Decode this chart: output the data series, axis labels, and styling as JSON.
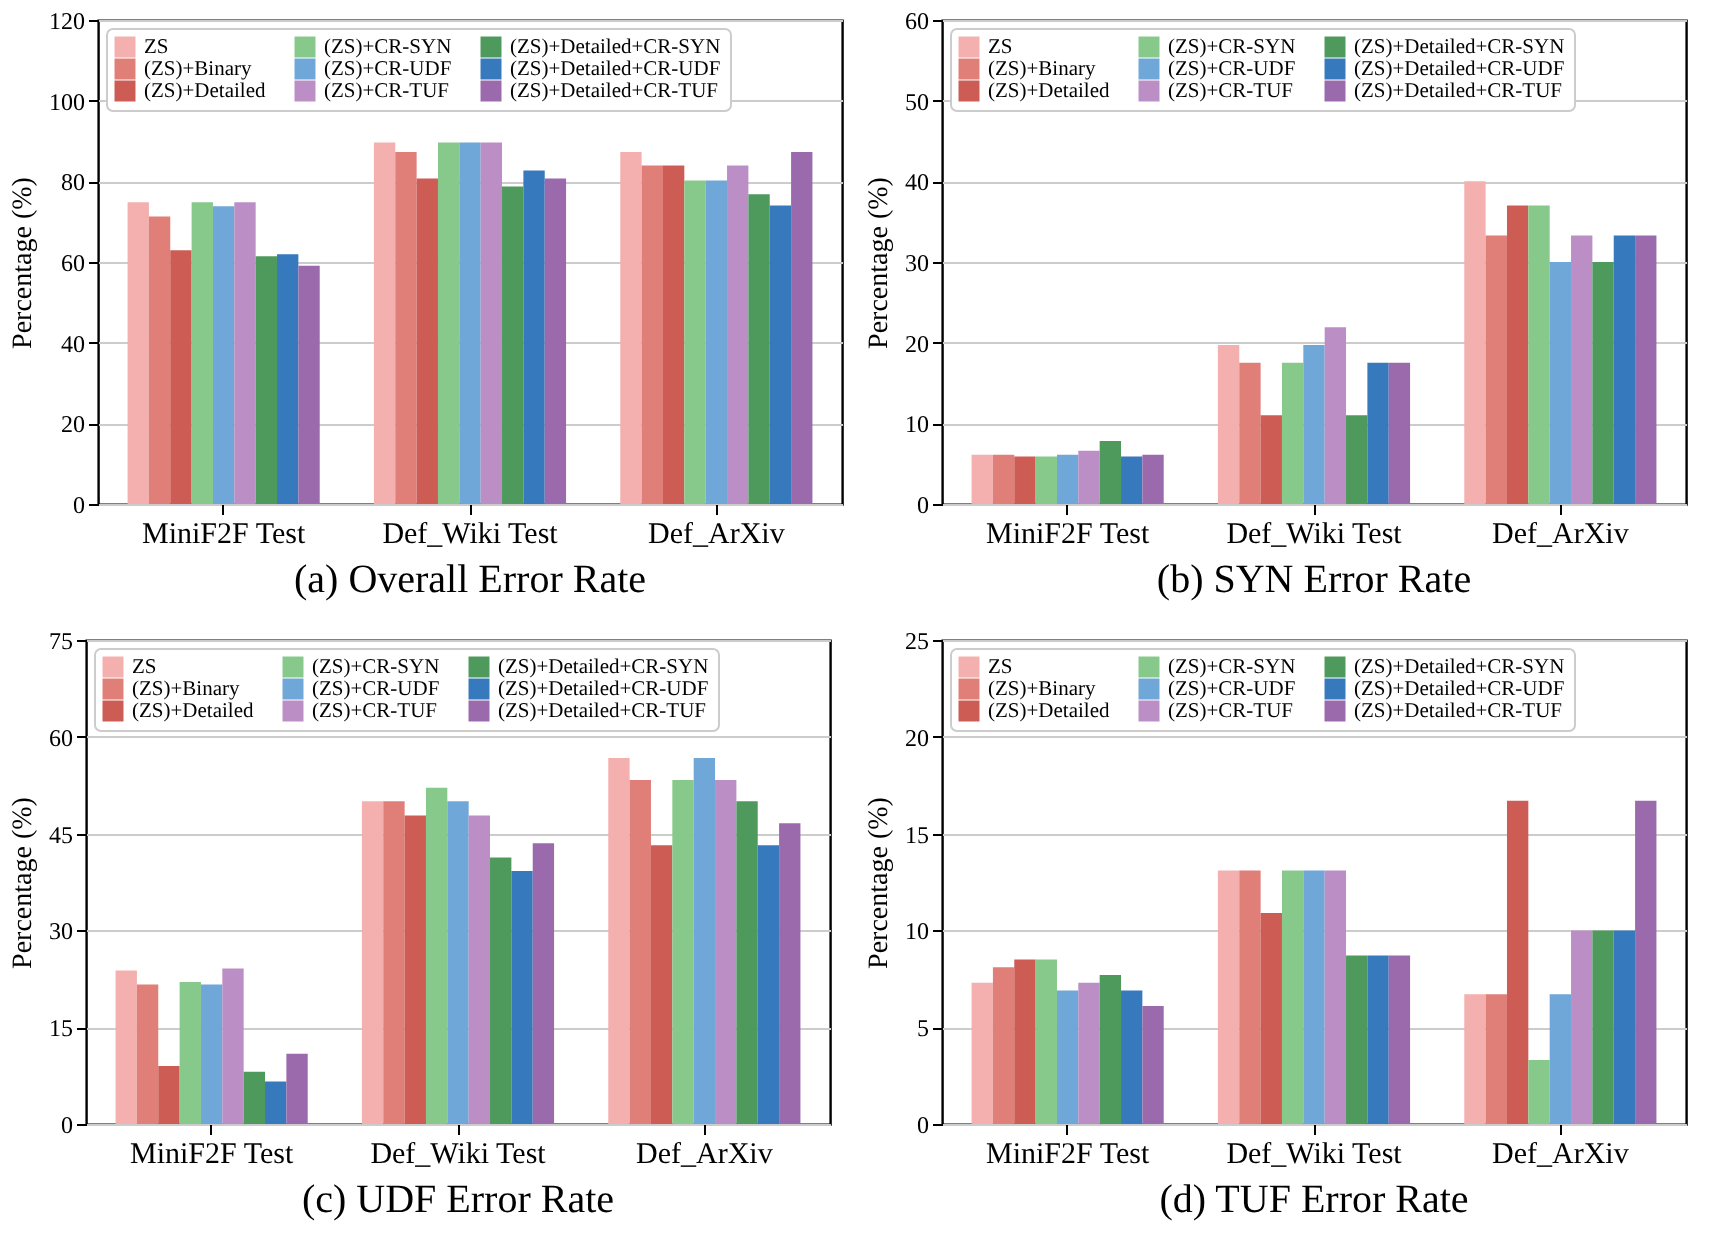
{
  "chart_data": [
    {
      "type": "bar",
      "title": "(a) Overall Error Rate",
      "ylabel": "Percentage (%)",
      "categories": [
        "MiniF2F Test",
        "Def_Wiki Test",
        "Def_ArXiv"
      ],
      "ylim": [
        0,
        120
      ],
      "yticks": [
        0,
        20,
        40,
        60,
        80,
        100,
        120
      ],
      "grid": "y",
      "legend": "top left",
      "series": [
        {
          "name": "ZS",
          "color": "#f4b0ae",
          "values": [
            74.8,
            89.6,
            87.3
          ]
        },
        {
          "name": "(ZS)+Binary",
          "color": "#e07f78",
          "values": [
            71.3,
            87.3,
            83.9
          ]
        },
        {
          "name": "(ZS)+Detailed",
          "color": "#cd5c55",
          "values": [
            62.9,
            80.7,
            83.9
          ]
        },
        {
          "name": "(ZS)+CR-SYN",
          "color": "#86c98a",
          "values": [
            74.8,
            89.6,
            80.2
          ]
        },
        {
          "name": "(ZS)+CR-UDF",
          "color": "#6fa8d8",
          "values": [
            73.8,
            89.6,
            80.2
          ]
        },
        {
          "name": "(ZS)+CR-TUF",
          "color": "#bb8fc6",
          "values": [
            74.8,
            89.6,
            83.9
          ]
        },
        {
          "name": "(ZS)+Detailed+CR-SYN",
          "color": "#4e9a5c",
          "values": [
            61.4,
            78.7,
            76.8
          ]
        },
        {
          "name": "(ZS)+Detailed+CR-UDF",
          "color": "#3779bd",
          "values": [
            61.9,
            82.7,
            74.0
          ]
        },
        {
          "name": "(ZS)+Detailed+CR-TUF",
          "color": "#9b6aad",
          "values": [
            59.1,
            80.7,
            87.3
          ]
        }
      ]
    },
    {
      "type": "bar",
      "title": "(b) SYN Error Rate",
      "ylabel": "Percentage (%)",
      "categories": [
        "MiniF2F Test",
        "Def_Wiki Test",
        "Def_ArXiv"
      ],
      "ylim": [
        0,
        60
      ],
      "yticks": [
        0,
        10,
        20,
        30,
        40,
        50,
        60
      ],
      "grid": "y",
      "legend": "top left",
      "series": [
        {
          "name": "ZS",
          "color": "#f4b0ae",
          "values": [
            6.1,
            19.7,
            40.0
          ]
        },
        {
          "name": "(ZS)+Binary",
          "color": "#e07f78",
          "values": [
            6.1,
            17.5,
            33.3
          ]
        },
        {
          "name": "(ZS)+Detailed",
          "color": "#cd5c55",
          "values": [
            5.9,
            11.0,
            37.0
          ]
        },
        {
          "name": "(ZS)+CR-SYN",
          "color": "#86c98a",
          "values": [
            5.9,
            17.5,
            37.0
          ]
        },
        {
          "name": "(ZS)+CR-UDF",
          "color": "#6fa8d8",
          "values": [
            6.1,
            19.7,
            30.0
          ]
        },
        {
          "name": "(ZS)+CR-TUF",
          "color": "#bb8fc6",
          "values": [
            6.6,
            21.9,
            33.3
          ]
        },
        {
          "name": "(ZS)+Detailed+CR-SYN",
          "color": "#4e9a5c",
          "values": [
            7.8,
            11.0,
            30.0
          ]
        },
        {
          "name": "(ZS)+Detailed+CR-UDF",
          "color": "#3779bd",
          "values": [
            5.9,
            17.5,
            33.3
          ]
        },
        {
          "name": "(ZS)+Detailed+CR-TUF",
          "color": "#9b6aad",
          "values": [
            6.1,
            17.5,
            33.3
          ]
        }
      ]
    },
    {
      "type": "bar",
      "title": "(c) UDF Error Rate",
      "ylabel": "Percentage (%)",
      "categories": [
        "MiniF2F Test",
        "Def_Wiki Test",
        "Def_ArXiv"
      ],
      "ylim": [
        0,
        75
      ],
      "yticks": [
        0,
        15,
        30,
        45,
        60,
        75
      ],
      "grid": "y",
      "legend": "top left",
      "series": [
        {
          "name": "ZS",
          "color": "#f4b0ae",
          "values": [
            23.8,
            50.0,
            56.7
          ]
        },
        {
          "name": "(ZS)+Binary",
          "color": "#e07f78",
          "values": [
            21.6,
            50.0,
            53.3
          ]
        },
        {
          "name": "(ZS)+Detailed",
          "color": "#cd5c55",
          "values": [
            9.0,
            47.8,
            43.2
          ]
        },
        {
          "name": "(ZS)+CR-SYN",
          "color": "#86c98a",
          "values": [
            22.0,
            52.1,
            53.3
          ]
        },
        {
          "name": "(ZS)+CR-UDF",
          "color": "#6fa8d8",
          "values": [
            21.6,
            50.0,
            56.7
          ]
        },
        {
          "name": "(ZS)+CR-TUF",
          "color": "#bb8fc6",
          "values": [
            24.1,
            47.8,
            53.3
          ]
        },
        {
          "name": "(ZS)+Detailed+CR-SYN",
          "color": "#4e9a5c",
          "values": [
            8.1,
            41.3,
            50.0
          ]
        },
        {
          "name": "(ZS)+Detailed+CR-UDF",
          "color": "#3779bd",
          "values": [
            6.6,
            39.2,
            43.2
          ]
        },
        {
          "name": "(ZS)+Detailed+CR-TUF",
          "color": "#9b6aad",
          "values": [
            10.9,
            43.5,
            46.6
          ]
        }
      ]
    },
    {
      "type": "bar",
      "title": "(d) TUF Error Rate",
      "ylabel": "Percentage (%)",
      "categories": [
        "MiniF2F Test",
        "Def_Wiki Test",
        "Def_ArXiv"
      ],
      "ylim": [
        0,
        25
      ],
      "yticks": [
        0,
        5,
        10,
        15,
        20,
        25
      ],
      "grid": "y",
      "legend": "top left",
      "series": [
        {
          "name": "ZS",
          "color": "#f4b0ae",
          "values": [
            7.3,
            13.1,
            6.7
          ]
        },
        {
          "name": "(ZS)+Binary",
          "color": "#e07f78",
          "values": [
            8.1,
            13.1,
            6.7
          ]
        },
        {
          "name": "(ZS)+Detailed",
          "color": "#cd5c55",
          "values": [
            8.5,
            10.9,
            16.7
          ]
        },
        {
          "name": "(ZS)+CR-SYN",
          "color": "#86c98a",
          "values": [
            8.5,
            13.1,
            3.3
          ]
        },
        {
          "name": "(ZS)+CR-UDF",
          "color": "#6fa8d8",
          "values": [
            6.9,
            13.1,
            6.7
          ]
        },
        {
          "name": "(ZS)+CR-TUF",
          "color": "#bb8fc6",
          "values": [
            7.3,
            13.1,
            10.0
          ]
        },
        {
          "name": "(ZS)+Detailed+CR-SYN",
          "color": "#4e9a5c",
          "values": [
            7.7,
            8.7,
            10.0
          ]
        },
        {
          "name": "(ZS)+Detailed+CR-UDF",
          "color": "#3779bd",
          "values": [
            6.9,
            8.7,
            10.0
          ]
        },
        {
          "name": "(ZS)+Detailed+CR-TUF",
          "color": "#9b6aad",
          "values": [
            6.1,
            8.7,
            16.7
          ]
        }
      ]
    }
  ]
}
